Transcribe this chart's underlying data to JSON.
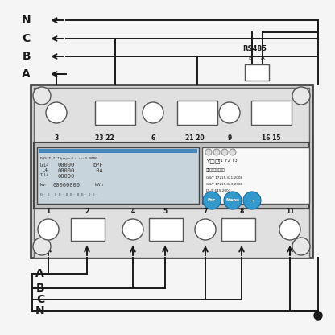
{
  "bg_color": "#f5f5f5",
  "line_color": "#1a1a1a",
  "meter_fc": "#d0d0d0",
  "meter_ec": "#444444",
  "terminal_fc": "#e0e0e0",
  "display_fc": "#c8d4dc",
  "info_fc": "#f8f8f8",
  "btn_color": "#3399cc",
  "blue_bar": "#4488bb",
  "top_labels": [
    "3",
    "23 22",
    "6",
    "21 20",
    "9",
    "16 15"
  ],
  "bot_labels": [
    "1",
    "2",
    "4",
    "5",
    "7",
    "8",
    "11"
  ],
  "rs485_label": "RS485",
  "rs485_sub_b": "B",
  "rs485_sub_a": "A",
  "left_top_labels": [
    "N",
    "C",
    "B",
    "A"
  ],
  "left_bot_labels": [
    "A",
    "B",
    "C",
    "N"
  ],
  "btn_labels": [
    "Esc",
    "Menu",
    "→"
  ]
}
